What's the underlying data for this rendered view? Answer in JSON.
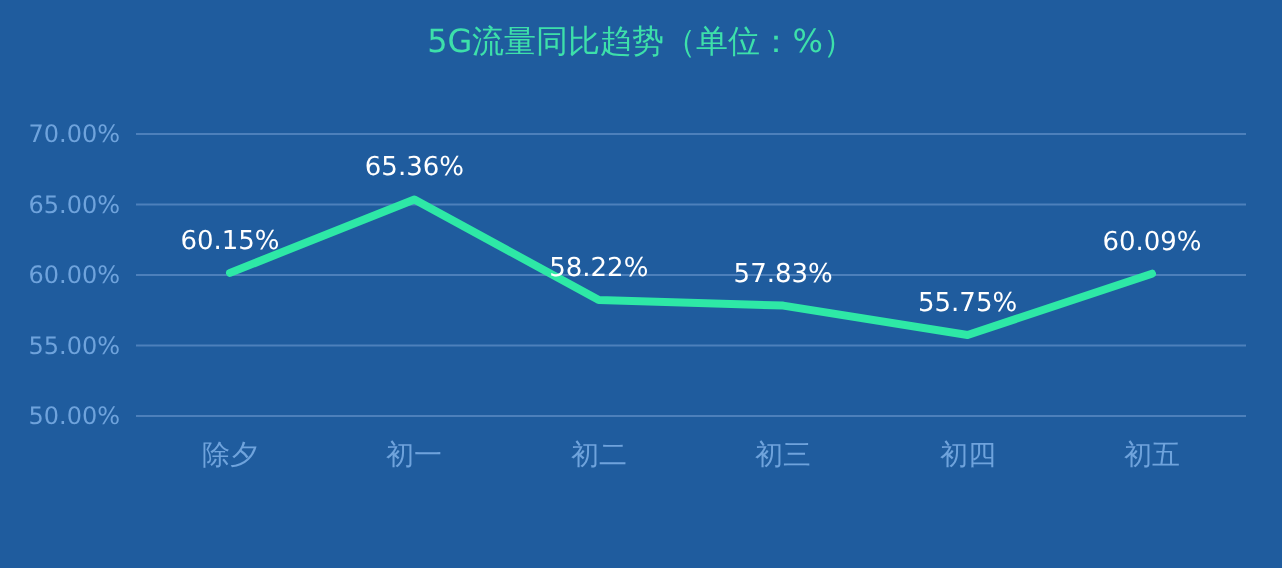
{
  "chart_data": {
    "type": "line",
    "title": "5G流量同比趋势（单位：%）",
    "categories": [
      "除夕",
      "初一",
      "初二",
      "初三",
      "初四",
      "初五"
    ],
    "series": [
      {
        "color": "#2ee8a6",
        "values": [
          60.15,
          65.36,
          58.22,
          57.83,
          55.75,
          60.09
        ],
        "value_labels": [
          "60.15%",
          "65.36%",
          "58.22%",
          "57.83%",
          "55.75%",
          "60.09%"
        ]
      }
    ],
    "ylim": [
      50,
      70
    ],
    "yticks": [
      {
        "value": 50,
        "label": "50.00%"
      },
      {
        "value": 55,
        "label": "55.00%"
      },
      {
        "value": 60,
        "label": "60.00%"
      },
      {
        "value": 65,
        "label": "65.00%"
      },
      {
        "value": 70,
        "label": "70.00%"
      }
    ],
    "grid": "y",
    "marker": "none",
    "line_style": "solid"
  }
}
